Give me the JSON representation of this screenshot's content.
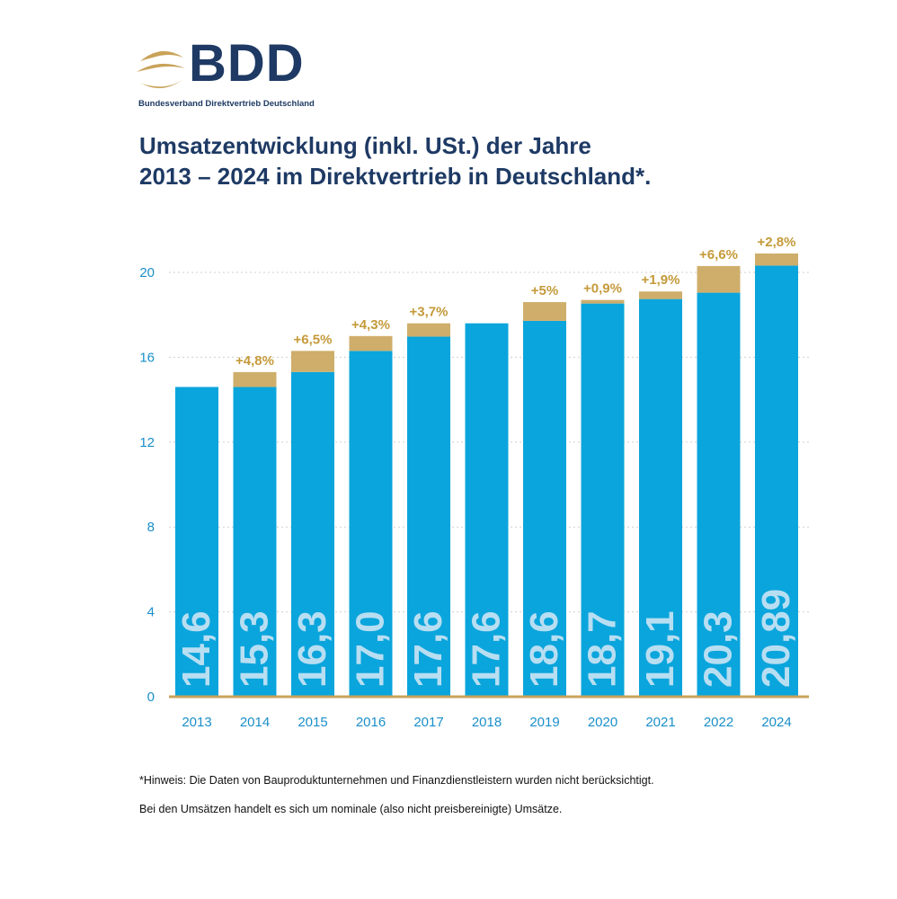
{
  "logo": {
    "text": "BDD",
    "subtitle": "Bundesverband Direktvertrieb Deutschland"
  },
  "title": {
    "line1": "Umsatzentwicklung (inkl. USt.) der Jahre",
    "line2": "2013 – 2024 im Direktvertrieb in Deutschland*."
  },
  "colors": {
    "bar": "#0aa5dc",
    "growth": "#cfae6b",
    "growth_label": "#c59a3a",
    "axis_text": "#1a8fc9",
    "baseline": "#c9a35a",
    "value_text": "#b8def2",
    "title": "#1e3a64"
  },
  "chart_data": {
    "type": "bar",
    "categories": [
      "2013",
      "2014",
      "2015",
      "2016",
      "2017",
      "2018",
      "2019",
      "2020",
      "2021",
      "2022",
      "2024"
    ],
    "value_labels": [
      "14,6",
      "15,3",
      "16,3",
      "17,0",
      "17,6",
      "17,6",
      "18,6",
      "18,7",
      "19,1",
      "20,3",
      "20,89"
    ],
    "values": [
      14.6,
      15.3,
      16.3,
      17.0,
      17.6,
      17.6,
      18.6,
      18.7,
      19.1,
      20.3,
      20.89
    ],
    "growth_labels": [
      "",
      "+4,8%",
      "+6,5%",
      "+4,3%",
      "+3,7%",
      "",
      "+5%",
      "+0,9%",
      "+1,9%",
      "+6,6%",
      "+2,8%"
    ],
    "growth_values": [
      0,
      4.8,
      6.5,
      4.3,
      3.7,
      0,
      5,
      0.9,
      1.9,
      6.6,
      2.8
    ],
    "ylim": [
      0,
      20
    ],
    "yticks": [
      0,
      4,
      8,
      12,
      16,
      20
    ],
    "grid": true
  },
  "notes": {
    "hint": "*Hinweis: Die Daten von Bauproduktunternehmen und Finanzdienstleistern wurden nicht berücksichtigt.",
    "nominal": "Bei den Umsätzen handelt es sich um nominale (also nicht preisbereinigte) Umsätze."
  }
}
